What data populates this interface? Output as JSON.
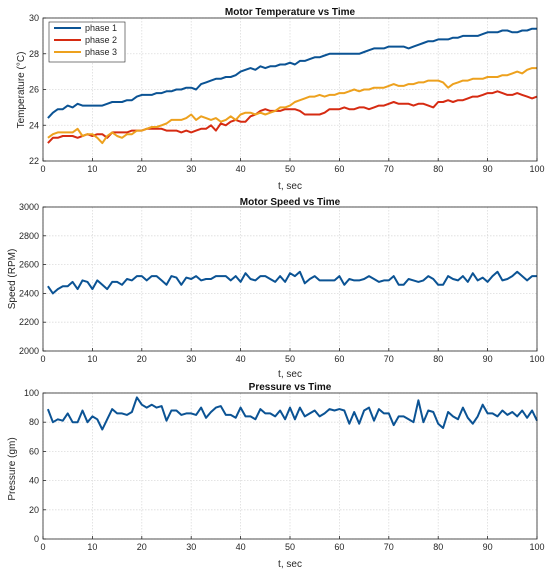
{
  "chart_data": [
    {
      "type": "line",
      "title": "Motor Temperature vs Time",
      "xlabel": "t, sec",
      "ylabel": "Temperature (°C)",
      "xlim": [
        0,
        100
      ],
      "ylim": [
        22,
        30
      ],
      "xticks": [
        0,
        10,
        20,
        30,
        40,
        50,
        60,
        70,
        80,
        90,
        100
      ],
      "yticks": [
        22,
        24,
        26,
        28,
        30
      ],
      "grid": true,
      "legend_position": "top-left",
      "x": [
        1,
        2,
        3,
        4,
        5,
        6,
        7,
        8,
        9,
        10,
        11,
        12,
        13,
        14,
        15,
        16,
        17,
        18,
        19,
        20,
        21,
        22,
        23,
        24,
        25,
        26,
        27,
        28,
        29,
        30,
        31,
        32,
        33,
        34,
        35,
        36,
        37,
        38,
        39,
        40,
        41,
        42,
        43,
        44,
        45,
        46,
        47,
        48,
        49,
        50,
        51,
        52,
        53,
        54,
        55,
        56,
        57,
        58,
        59,
        60,
        61,
        62,
        63,
        64,
        65,
        66,
        67,
        68,
        69,
        70,
        71,
        72,
        73,
        74,
        75,
        76,
        77,
        78,
        79,
        80,
        81,
        82,
        83,
        84,
        85,
        86,
        87,
        88,
        89,
        90,
        91,
        92,
        93,
        94,
        95,
        96,
        97,
        98,
        99,
        100
      ],
      "series": [
        {
          "name": "phase 1",
          "color": "#0b5394",
          "values": [
            24.4,
            24.7,
            24.9,
            24.9,
            25.1,
            25.0,
            25.2,
            25.1,
            25.1,
            25.1,
            25.1,
            25.1,
            25.2,
            25.3,
            25.3,
            25.3,
            25.4,
            25.4,
            25.6,
            25.7,
            25.7,
            25.7,
            25.8,
            25.8,
            25.9,
            25.9,
            26.0,
            26.0,
            26.1,
            26.1,
            26.0,
            26.3,
            26.4,
            26.5,
            26.6,
            26.6,
            26.7,
            26.7,
            26.8,
            27.0,
            27.1,
            27.2,
            27.1,
            27.3,
            27.2,
            27.3,
            27.3,
            27.4,
            27.4,
            27.5,
            27.4,
            27.6,
            27.6,
            27.7,
            27.8,
            27.8,
            27.9,
            28.0,
            28.0,
            28.0,
            28.0,
            28.0,
            28.0,
            28.0,
            28.1,
            28.2,
            28.3,
            28.3,
            28.3,
            28.4,
            28.4,
            28.4,
            28.4,
            28.3,
            28.4,
            28.5,
            28.6,
            28.7,
            28.7,
            28.8,
            28.8,
            28.8,
            28.9,
            28.9,
            29.0,
            29.0,
            29.0,
            29.0,
            29.1,
            29.2,
            29.2,
            29.2,
            29.3,
            29.3,
            29.2,
            29.2,
            29.3,
            29.3,
            29.4,
            29.4
          ]
        },
        {
          "name": "phase 2",
          "color": "#d62b12",
          "values": [
            23.0,
            23.3,
            23.3,
            23.4,
            23.4,
            23.4,
            23.3,
            23.4,
            23.5,
            23.4,
            23.5,
            23.5,
            23.3,
            23.6,
            23.6,
            23.6,
            23.6,
            23.7,
            23.7,
            23.7,
            23.8,
            23.8,
            23.8,
            23.8,
            23.7,
            23.7,
            23.7,
            23.6,
            23.7,
            23.6,
            23.7,
            23.8,
            23.8,
            24.0,
            23.7,
            24.1,
            24.0,
            24.2,
            24.3,
            24.2,
            24.2,
            24.5,
            24.6,
            24.8,
            24.9,
            24.8,
            24.8,
            24.8,
            24.9,
            24.9,
            24.9,
            24.8,
            24.6,
            24.6,
            24.6,
            24.6,
            24.7,
            24.9,
            24.9,
            24.9,
            25.0,
            24.9,
            24.9,
            25.0,
            25.0,
            24.9,
            25.0,
            25.1,
            25.1,
            25.2,
            25.3,
            25.2,
            25.2,
            25.2,
            25.1,
            25.2,
            25.2,
            25.1,
            25.0,
            25.3,
            25.3,
            25.4,
            25.3,
            25.4,
            25.4,
            25.5,
            25.6,
            25.6,
            25.7,
            25.8,
            25.8,
            25.9,
            25.8,
            25.7,
            25.7,
            25.8,
            25.7,
            25.6,
            25.5,
            25.6
          ]
        },
        {
          "name": "phase 3",
          "color": "#eda11e",
          "values": [
            23.3,
            23.5,
            23.6,
            23.6,
            23.6,
            23.6,
            23.8,
            23.4,
            23.5,
            23.5,
            23.3,
            23.0,
            23.4,
            23.6,
            23.4,
            23.3,
            23.5,
            23.5,
            23.7,
            23.7,
            23.8,
            23.9,
            23.9,
            24.0,
            24.1,
            24.3,
            24.3,
            24.3,
            24.4,
            24.6,
            24.3,
            24.5,
            24.4,
            24.3,
            24.4,
            24.2,
            24.3,
            24.5,
            24.3,
            24.6,
            24.7,
            24.7,
            24.6,
            24.7,
            24.6,
            24.7,
            24.8,
            25.0,
            25.0,
            25.1,
            25.3,
            25.4,
            25.5,
            25.6,
            25.6,
            25.7,
            25.6,
            25.7,
            25.7,
            25.8,
            25.8,
            25.9,
            26.0,
            25.9,
            26.0,
            26.0,
            26.1,
            26.1,
            26.1,
            26.2,
            26.3,
            26.2,
            26.2,
            26.3,
            26.3,
            26.4,
            26.4,
            26.5,
            26.5,
            26.5,
            26.4,
            26.1,
            26.3,
            26.4,
            26.5,
            26.5,
            26.6,
            26.6,
            26.6,
            26.7,
            26.7,
            26.7,
            26.8,
            26.8,
            26.9,
            27.0,
            26.9,
            27.1,
            27.2,
            27.2
          ]
        }
      ]
    },
    {
      "type": "line",
      "title": "Motor Speed vs Time",
      "xlabel": "t, sec",
      "ylabel": "Speed (RPM)",
      "xlim": [
        0,
        100
      ],
      "ylim": [
        2000,
        3000
      ],
      "xticks": [
        0,
        10,
        20,
        30,
        40,
        50,
        60,
        70,
        80,
        90,
        100
      ],
      "yticks": [
        2000,
        2200,
        2400,
        2600,
        2800,
        3000
      ],
      "grid": true,
      "x": [
        1,
        2,
        3,
        4,
        5,
        6,
        7,
        8,
        9,
        10,
        11,
        12,
        13,
        14,
        15,
        16,
        17,
        18,
        19,
        20,
        21,
        22,
        23,
        24,
        25,
        26,
        27,
        28,
        29,
        30,
        31,
        32,
        33,
        34,
        35,
        36,
        37,
        38,
        39,
        40,
        41,
        42,
        43,
        44,
        45,
        46,
        47,
        48,
        49,
        50,
        51,
        52,
        53,
        54,
        55,
        56,
        57,
        58,
        59,
        60,
        61,
        62,
        63,
        64,
        65,
        66,
        67,
        68,
        69,
        70,
        71,
        72,
        73,
        74,
        75,
        76,
        77,
        78,
        79,
        80,
        81,
        82,
        83,
        84,
        85,
        86,
        87,
        88,
        89,
        90,
        91,
        92,
        93,
        94,
        95,
        96,
        97,
        98,
        99,
        100
      ],
      "series": [
        {
          "color": "#0b5394",
          "values": [
            2450,
            2400,
            2430,
            2450,
            2450,
            2480,
            2430,
            2490,
            2480,
            2430,
            2490,
            2460,
            2430,
            2480,
            2480,
            2460,
            2500,
            2490,
            2520,
            2520,
            2490,
            2520,
            2520,
            2490,
            2460,
            2520,
            2510,
            2460,
            2510,
            2500,
            2520,
            2490,
            2500,
            2500,
            2520,
            2520,
            2520,
            2490,
            2520,
            2480,
            2540,
            2500,
            2490,
            2520,
            2520,
            2500,
            2480,
            2520,
            2480,
            2540,
            2520,
            2550,
            2470,
            2500,
            2520,
            2490,
            2490,
            2490,
            2490,
            2520,
            2460,
            2500,
            2490,
            2490,
            2500,
            2520,
            2500,
            2480,
            2490,
            2490,
            2520,
            2460,
            2460,
            2500,
            2490,
            2480,
            2490,
            2520,
            2500,
            2460,
            2460,
            2520,
            2500,
            2490,
            2520,
            2480,
            2540,
            2490,
            2510,
            2480,
            2520,
            2550,
            2490,
            2500,
            2520,
            2550,
            2520,
            2490,
            2520,
            2520
          ]
        }
      ]
    },
    {
      "type": "line",
      "title": "Pressure vs Time",
      "xlabel": "t, sec",
      "ylabel": "Pressure (gm)",
      "xlim": [
        0,
        100
      ],
      "ylim": [
        0,
        100
      ],
      "xticks": [
        0,
        10,
        20,
        30,
        40,
        50,
        60,
        70,
        80,
        90,
        100
      ],
      "yticks": [
        0,
        20,
        40,
        60,
        80,
        100
      ],
      "grid": true,
      "x": [
        1,
        2,
        3,
        4,
        5,
        6,
        7,
        8,
        9,
        10,
        11,
        12,
        13,
        14,
        15,
        16,
        17,
        18,
        19,
        20,
        21,
        22,
        23,
        24,
        25,
        26,
        27,
        28,
        29,
        30,
        31,
        32,
        33,
        34,
        35,
        36,
        37,
        38,
        39,
        40,
        41,
        42,
        43,
        44,
        45,
        46,
        47,
        48,
        49,
        50,
        51,
        52,
        53,
        54,
        55,
        56,
        57,
        58,
        59,
        60,
        61,
        62,
        63,
        64,
        65,
        66,
        67,
        68,
        69,
        70,
        71,
        72,
        73,
        74,
        75,
        76,
        77,
        78,
        79,
        80,
        81,
        82,
        83,
        84,
        85,
        86,
        87,
        88,
        89,
        90,
        91,
        92,
        93,
        94,
        95,
        96,
        97,
        98,
        99,
        100
      ],
      "series": [
        {
          "color": "#0b5394",
          "values": [
            89,
            80,
            82,
            81,
            86,
            80,
            80,
            88,
            80,
            84,
            82,
            75,
            82,
            89,
            86,
            86,
            85,
            87,
            97,
            92,
            90,
            92,
            90,
            91,
            81,
            88,
            88,
            85,
            86,
            86,
            85,
            90,
            83,
            87,
            90,
            91,
            85,
            85,
            83,
            90,
            84,
            84,
            82,
            89,
            86,
            86,
            84,
            88,
            82,
            90,
            82,
            90,
            84,
            86,
            88,
            84,
            86,
            89,
            88,
            89,
            88,
            79,
            87,
            79,
            88,
            90,
            81,
            89,
            86,
            86,
            78,
            84,
            84,
            82,
            80,
            95,
            80,
            88,
            87,
            79,
            76,
            87,
            84,
            82,
            90,
            83,
            79,
            84,
            92,
            86,
            86,
            84,
            88,
            85,
            87,
            84,
            88,
            83,
            88,
            81
          ]
        }
      ]
    }
  ]
}
